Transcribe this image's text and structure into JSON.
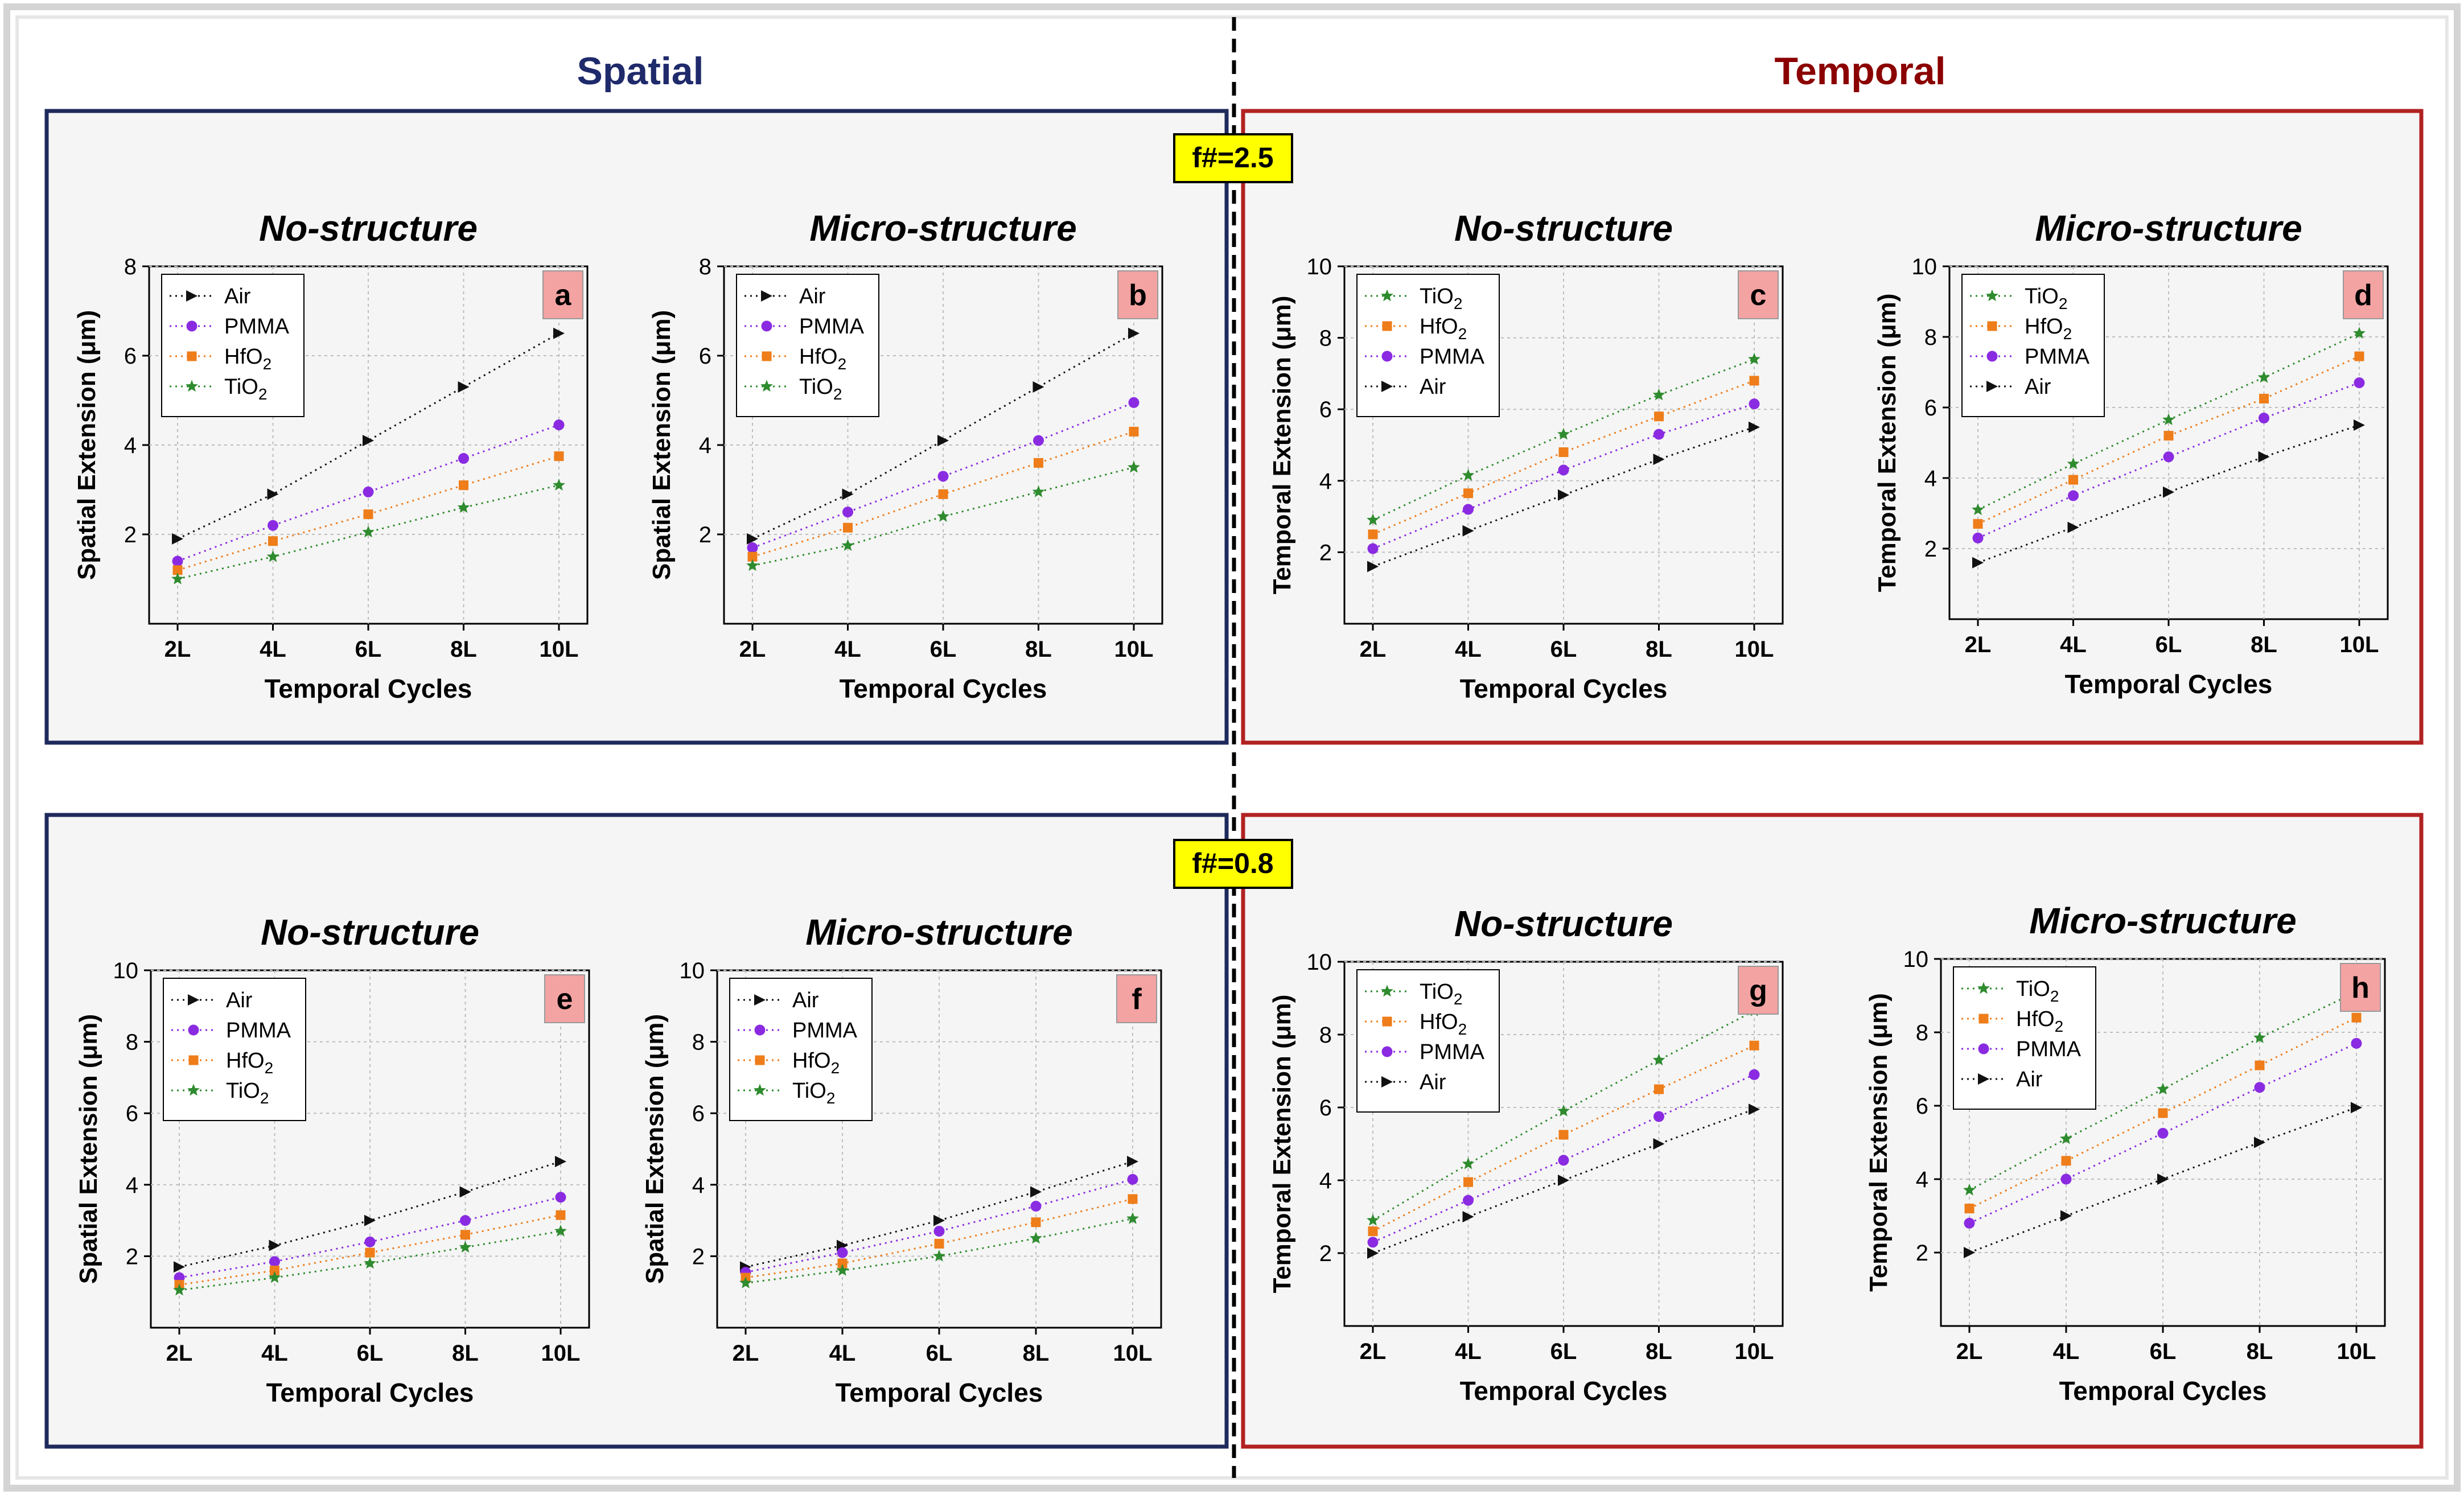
{
  "figure": {
    "left_header": "Spatial",
    "right_header": "Temporal",
    "row_labels": [
      "f#=2.5",
      "f#=0.8"
    ],
    "colors": {
      "spatial_frame": "#1f2a5c",
      "temporal_frame": "#b22222",
      "spatial_header": "#1f2a6b",
      "temporal_header": "#8b0000",
      "row_label_bg": "#ffff00",
      "panel_letter_bg": "#f4a3a3",
      "Air": "#111111",
      "PMMA": "#8a2be2",
      "HfO2": "#ee7d1a",
      "TiO2": "#2e8b2e"
    }
  },
  "chart_data": [
    {
      "type": "scatter",
      "panel": "a",
      "title": "No-structure",
      "xlabel": "Temporal Cycles",
      "ylabel": "Spatial Extension (μm)",
      "ylim": [
        0,
        8
      ],
      "yticks": [
        2,
        4,
        6,
        8
      ],
      "categories": [
        "2L",
        "4L",
        "6L",
        "8L",
        "10L"
      ],
      "legend": [
        "Air",
        "PMMA",
        "HfO2",
        "TiO2"
      ],
      "series": [
        {
          "name": "Air",
          "values": [
            1.9,
            2.9,
            4.1,
            5.3,
            6.5
          ]
        },
        {
          "name": "PMMA",
          "values": [
            1.4,
            2.2,
            2.95,
            3.7,
            4.45
          ]
        },
        {
          "name": "HfO2",
          "values": [
            1.2,
            1.85,
            2.45,
            3.1,
            3.75
          ]
        },
        {
          "name": "TiO2",
          "values": [
            1.0,
            1.5,
            2.05,
            2.6,
            3.1
          ]
        }
      ]
    },
    {
      "type": "scatter",
      "panel": "b",
      "title": "Micro-structure",
      "xlabel": "Temporal Cycles",
      "ylabel": "Spatial Extension (μm)",
      "ylim": [
        0,
        8
      ],
      "yticks": [
        2,
        4,
        6,
        8
      ],
      "categories": [
        "2L",
        "4L",
        "6L",
        "8L",
        "10L"
      ],
      "legend": [
        "Air",
        "PMMA",
        "HfO2",
        "TiO2"
      ],
      "series": [
        {
          "name": "Air",
          "values": [
            1.9,
            2.9,
            4.1,
            5.3,
            6.5
          ]
        },
        {
          "name": "PMMA",
          "values": [
            1.7,
            2.5,
            3.3,
            4.1,
            4.95
          ]
        },
        {
          "name": "HfO2",
          "values": [
            1.5,
            2.15,
            2.9,
            3.6,
            4.3
          ]
        },
        {
          "name": "TiO2",
          "values": [
            1.3,
            1.75,
            2.4,
            2.95,
            3.5
          ]
        }
      ]
    },
    {
      "type": "scatter",
      "panel": "c",
      "title": "No-structure",
      "xlabel": "Temporal Cycles",
      "ylabel": "Temporal Extension (μm)",
      "ylim": [
        0,
        10
      ],
      "yticks": [
        2,
        4,
        6,
        8,
        10
      ],
      "categories": [
        "2L",
        "4L",
        "6L",
        "8L",
        "10L"
      ],
      "legend": [
        "TiO2",
        "HfO2",
        "PMMA",
        "Air"
      ],
      "series": [
        {
          "name": "TiO2",
          "values": [
            2.9,
            4.15,
            5.3,
            6.4,
            7.4
          ]
        },
        {
          "name": "HfO2",
          "values": [
            2.5,
            3.65,
            4.8,
            5.8,
            6.8
          ]
        },
        {
          "name": "PMMA",
          "values": [
            2.1,
            3.2,
            4.3,
            5.3,
            6.15
          ]
        },
        {
          "name": "Air",
          "values": [
            1.6,
            2.6,
            3.6,
            4.6,
            5.5
          ]
        }
      ]
    },
    {
      "type": "scatter",
      "panel": "d",
      "title": "Micro-structure",
      "xlabel": "Temporal Cycles",
      "ylabel": "Temporal Extension (μm)",
      "ylim": [
        0,
        10
      ],
      "yticks": [
        2,
        4,
        6,
        8,
        10
      ],
      "categories": [
        "2L",
        "4L",
        "6L",
        "8L",
        "10L"
      ],
      "legend": [
        "TiO2",
        "HfO2",
        "PMMA",
        "Air"
      ],
      "series": [
        {
          "name": "TiO2",
          "values": [
            3.1,
            4.4,
            5.65,
            6.85,
            8.1
          ]
        },
        {
          "name": "HfO2",
          "values": [
            2.7,
            3.95,
            5.2,
            6.25,
            7.45
          ]
        },
        {
          "name": "PMMA",
          "values": [
            2.3,
            3.5,
            4.6,
            5.7,
            6.7
          ]
        },
        {
          "name": "Air",
          "values": [
            1.6,
            2.6,
            3.6,
            4.6,
            5.5
          ]
        }
      ]
    },
    {
      "type": "scatter",
      "panel": "e",
      "title": "No-structure",
      "xlabel": "Temporal Cycles",
      "ylabel": "Spatial Extension (μm)",
      "ylim": [
        0,
        10
      ],
      "yticks": [
        2,
        4,
        6,
        8,
        10
      ],
      "categories": [
        "2L",
        "4L",
        "6L",
        "8L",
        "10L"
      ],
      "legend": [
        "Air",
        "PMMA",
        "HfO2",
        "TiO2"
      ],
      "series": [
        {
          "name": "Air",
          "values": [
            1.7,
            2.3,
            3.0,
            3.8,
            4.65
          ]
        },
        {
          "name": "PMMA",
          "values": [
            1.4,
            1.85,
            2.4,
            3.0,
            3.65
          ]
        },
        {
          "name": "HfO2",
          "values": [
            1.2,
            1.6,
            2.1,
            2.6,
            3.15
          ]
        },
        {
          "name": "TiO2",
          "values": [
            1.05,
            1.4,
            1.8,
            2.25,
            2.7
          ]
        }
      ]
    },
    {
      "type": "scatter",
      "panel": "f",
      "title": "Micro-structure",
      "xlabel": "Temporal Cycles",
      "ylabel": "Spatial Extension (μm)",
      "ylim": [
        0,
        10
      ],
      "yticks": [
        2,
        4,
        6,
        8,
        10
      ],
      "categories": [
        "2L",
        "4L",
        "6L",
        "8L",
        "10L"
      ],
      "legend": [
        "Air",
        "PMMA",
        "HfO2",
        "TiO2"
      ],
      "series": [
        {
          "name": "Air",
          "values": [
            1.7,
            2.3,
            3.0,
            3.8,
            4.65
          ]
        },
        {
          "name": "PMMA",
          "values": [
            1.55,
            2.1,
            2.7,
            3.4,
            4.15
          ]
        },
        {
          "name": "HfO2",
          "values": [
            1.4,
            1.8,
            2.35,
            2.95,
            3.6
          ]
        },
        {
          "name": "TiO2",
          "values": [
            1.25,
            1.6,
            2.0,
            2.5,
            3.05
          ]
        }
      ]
    },
    {
      "type": "scatter",
      "panel": "g",
      "title": "No-structure",
      "xlabel": "Temporal Cycles",
      "ylabel": "Temporal Extension (μm)",
      "ylim": [
        0,
        10
      ],
      "yticks": [
        2,
        4,
        6,
        8,
        10
      ],
      "categories": [
        "2L",
        "4L",
        "6L",
        "8L",
        "10L"
      ],
      "legend": [
        "TiO2",
        "HfO2",
        "PMMA",
        "Air"
      ],
      "series": [
        {
          "name": "TiO2",
          "values": [
            2.9,
            4.45,
            5.9,
            7.3,
            8.65
          ]
        },
        {
          "name": "HfO2",
          "values": [
            2.6,
            3.95,
            5.25,
            6.5,
            7.7
          ]
        },
        {
          "name": "PMMA",
          "values": [
            2.3,
            3.45,
            4.55,
            5.75,
            6.9
          ]
        },
        {
          "name": "Air",
          "values": [
            2.0,
            3.0,
            4.0,
            5.0,
            5.95
          ]
        }
      ]
    },
    {
      "type": "scatter",
      "panel": "h",
      "title": "Micro-structure",
      "xlabel": "Temporal Cycles",
      "ylabel": "Temporal Extension (μm)",
      "ylim": [
        0,
        10
      ],
      "yticks": [
        2,
        4,
        6,
        8,
        10
      ],
      "categories": [
        "2L",
        "4L",
        "6L",
        "8L",
        "10L"
      ],
      "legend": [
        "TiO2",
        "HfO2",
        "PMMA",
        "Air"
      ],
      "series": [
        {
          "name": "TiO2",
          "values": [
            3.7,
            5.1,
            6.45,
            7.85,
            9.1
          ]
        },
        {
          "name": "HfO2",
          "values": [
            3.2,
            4.5,
            5.8,
            7.1,
            8.4
          ]
        },
        {
          "name": "PMMA",
          "values": [
            2.8,
            4.0,
            5.25,
            6.5,
            7.7
          ]
        },
        {
          "name": "Air",
          "values": [
            2.0,
            3.0,
            4.0,
            5.0,
            5.95
          ]
        }
      ]
    }
  ]
}
